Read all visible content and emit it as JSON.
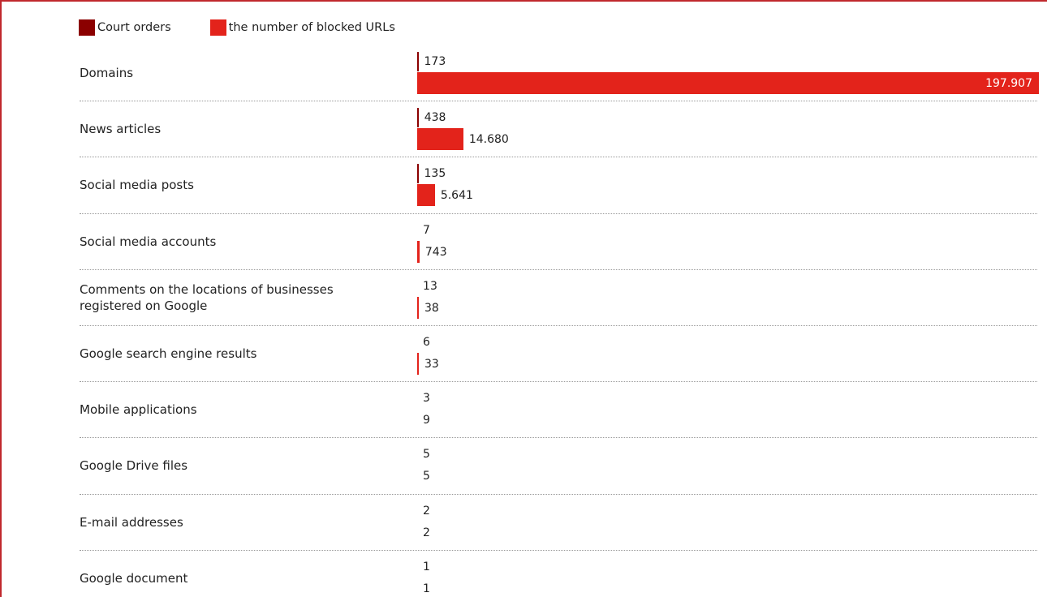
{
  "chart_data": {
    "type": "bar",
    "orientation": "horizontal",
    "legend_position": "top-left",
    "grid": false,
    "colors": {
      "court_orders": "#8b0000",
      "blocked_urls": "#e3231b"
    },
    "series": [
      {
        "name": "Court orders",
        "values": [
          173,
          438,
          135,
          7,
          13,
          6,
          3,
          5,
          2,
          1
        ],
        "labels": [
          "173",
          "438",
          "135",
          "7",
          "13",
          "6",
          "3",
          "5",
          "2",
          "1"
        ]
      },
      {
        "name": "the number of blocked URLs",
        "values": [
          197907,
          14680,
          5641,
          743,
          38,
          33,
          9,
          5,
          2,
          1
        ],
        "labels": [
          "197.907",
          "14.680",
          "5.641",
          "743",
          "38",
          "33",
          "9",
          "5",
          "2",
          "1"
        ]
      }
    ],
    "categories": [
      "Domains",
      "News articles",
      "Social media posts",
      "Social media accounts",
      "Comments on the locations of businesses registered on Google",
      "Google search engine results",
      "Mobile applications",
      "Google Drive files",
      "E-mail addresses",
      "Google document"
    ],
    "xlim": [
      0,
      197907
    ]
  }
}
